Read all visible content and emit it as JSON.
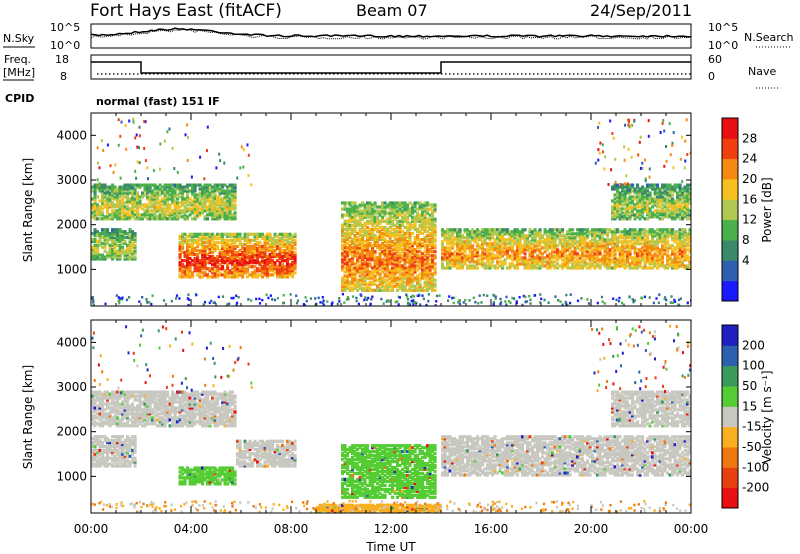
{
  "header": {
    "station": "Fort Hays East (fitACF)",
    "beam": "Beam 07",
    "date": "24/Sep/2011"
  },
  "noise_panel": {
    "left_label": "N.Sky",
    "right_label": "N.Search",
    "ticks": [
      "10^5",
      "10^0"
    ]
  },
  "freq_panel": {
    "left_label_1": "Freq.",
    "left_label_2": "[MHz]",
    "right_label": "Nave",
    "left_ticks": [
      "18",
      "8"
    ],
    "right_ticks": [
      "60",
      "0"
    ]
  },
  "cpid": {
    "label": "CPID",
    "value": "normal (fast) 151 IF"
  },
  "chart_data": [
    {
      "type": "heatmap",
      "ylabel": "Slant Range [km]",
      "ylim": [
        180,
        4500
      ],
      "yticks": [
        "4000",
        "3000",
        "2000",
        "1000"
      ],
      "xlabel": "Time UT",
      "xlim": [
        "00:00",
        "24:00"
      ],
      "xticks": [
        "00:00",
        "04:00",
        "08:00",
        "12:00",
        "16:00",
        "20:00",
        "00:00"
      ],
      "colorbar": {
        "label": "Power [dB]",
        "ticks": [
          "28",
          "24",
          "20",
          "16",
          "12",
          "8",
          "4"
        ],
        "colors": [
          "#1a1aff",
          "#2f5fb0",
          "#3a8a6a",
          "#4bb04b",
          "#b0c850",
          "#f5c020",
          "#f58a10",
          "#f04010",
          "#e81010"
        ]
      },
      "echo_regions": [
        {
          "t": [
            0.0,
            1.8
          ],
          "r": [
            1200,
            1900
          ],
          "level": 14
        },
        {
          "t": [
            0.0,
            5.8
          ],
          "r": [
            2100,
            2900
          ],
          "level": 15
        },
        {
          "t": [
            3.5,
            8.2
          ],
          "r": [
            800,
            1800
          ],
          "level": 25
        },
        {
          "t": [
            10.0,
            13.8
          ],
          "r": [
            500,
            2500
          ],
          "level": 21
        },
        {
          "t": [
            14.0,
            24.0
          ],
          "r": [
            1000,
            1900
          ],
          "level": 20
        },
        {
          "t": [
            20.8,
            24.0
          ],
          "r": [
            2100,
            2900
          ],
          "level": 14
        }
      ]
    },
    {
      "type": "heatmap",
      "ylabel": "Slant Range [km]",
      "ylim": [
        180,
        4500
      ],
      "yticks": [
        "4000",
        "3000",
        "2000",
        "1000"
      ],
      "xlabel": "Time UT",
      "xlim": [
        "00:00",
        "24:00"
      ],
      "xticks": [
        "00:00",
        "04:00",
        "08:00",
        "12:00",
        "16:00",
        "20:00",
        "00:00"
      ],
      "colorbar": {
        "label": "Velocity [m s⁻¹]",
        "ticks": [
          "200",
          "100",
          "50",
          "15",
          "-15",
          "-50",
          "-100",
          "-200"
        ],
        "colors": [
          "#2020c0",
          "#2c60b0",
          "#3a9a5a",
          "#55cc33",
          "#c8c8c0",
          "#f8b020",
          "#f07810",
          "#e84010",
          "#e81010"
        ]
      },
      "echo_regions": [
        {
          "t": [
            0.0,
            1.8
          ],
          "r": [
            1200,
            1900
          ],
          "velocity": 0
        },
        {
          "t": [
            0.0,
            5.8
          ],
          "r": [
            2100,
            2900
          ],
          "velocity": 0
        },
        {
          "t": [
            3.5,
            5.8
          ],
          "r": [
            800,
            1200
          ],
          "velocity": 40
        },
        {
          "t": [
            5.8,
            8.2
          ],
          "r": [
            1200,
            1800
          ],
          "velocity": 0
        },
        {
          "t": [
            10.0,
            13.8
          ],
          "r": [
            500,
            1700
          ],
          "velocity": 40
        },
        {
          "t": [
            14.0,
            24.0
          ],
          "r": [
            1000,
            1900
          ],
          "velocity": 0
        },
        {
          "t": [
            20.8,
            24.0
          ],
          "r": [
            2100,
            2900
          ],
          "velocity": 0
        },
        {
          "t": [
            9.0,
            14.0
          ],
          "r": [
            180,
            350
          ],
          "velocity": -40
        }
      ]
    }
  ]
}
